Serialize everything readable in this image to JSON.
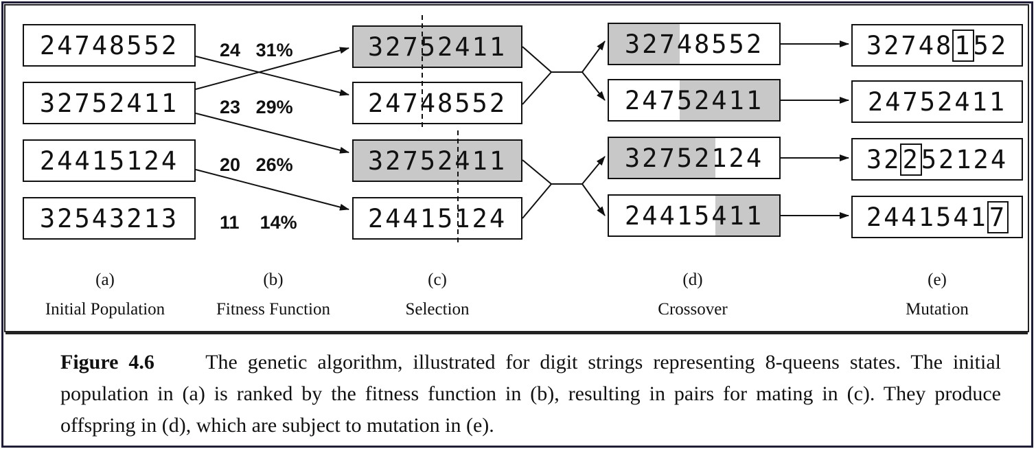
{
  "initial_population": [
    "24748552",
    "32752411",
    "24415124",
    "32543213"
  ],
  "fitness": [
    {
      "score": "24",
      "percent": "31%"
    },
    {
      "score": "23",
      "percent": "29%"
    },
    {
      "score": "20",
      "percent": "26%"
    },
    {
      "score": "11",
      "percent": "14%"
    }
  ],
  "selection": [
    "32752411",
    "24748552",
    "32752411",
    "24415124"
  ],
  "crossover": [
    "32748552",
    "24752411",
    "32752124",
    "24415411"
  ],
  "mutation": [
    {
      "pre": "32748",
      "boxed": "1",
      "post": "52"
    },
    {
      "pre": "24752411",
      "boxed": "",
      "post": ""
    },
    {
      "pre": "32",
      "boxed": "2",
      "post": "52124"
    },
    {
      "pre": "2441541",
      "boxed": "7",
      "post": ""
    }
  ],
  "labels": {
    "a": {
      "letter": "(a)",
      "name": "Initial Population"
    },
    "b": {
      "letter": "(b)",
      "name": "Fitness Function"
    },
    "c": {
      "letter": "(c)",
      "name": "Selection"
    },
    "d": {
      "letter": "(d)",
      "name": "Crossover"
    },
    "e": {
      "letter": "(e)",
      "name": "Mutation"
    }
  },
  "caption": {
    "figure": "Figure 4.6",
    "text": "The genetic algorithm, illustrated for digit strings representing 8-queens states. The initial population in (a) is ranked by the fitness function in (b), resulting in pairs for mating in (c). They produce offspring in (d), which are subject to mutation in (e)."
  }
}
